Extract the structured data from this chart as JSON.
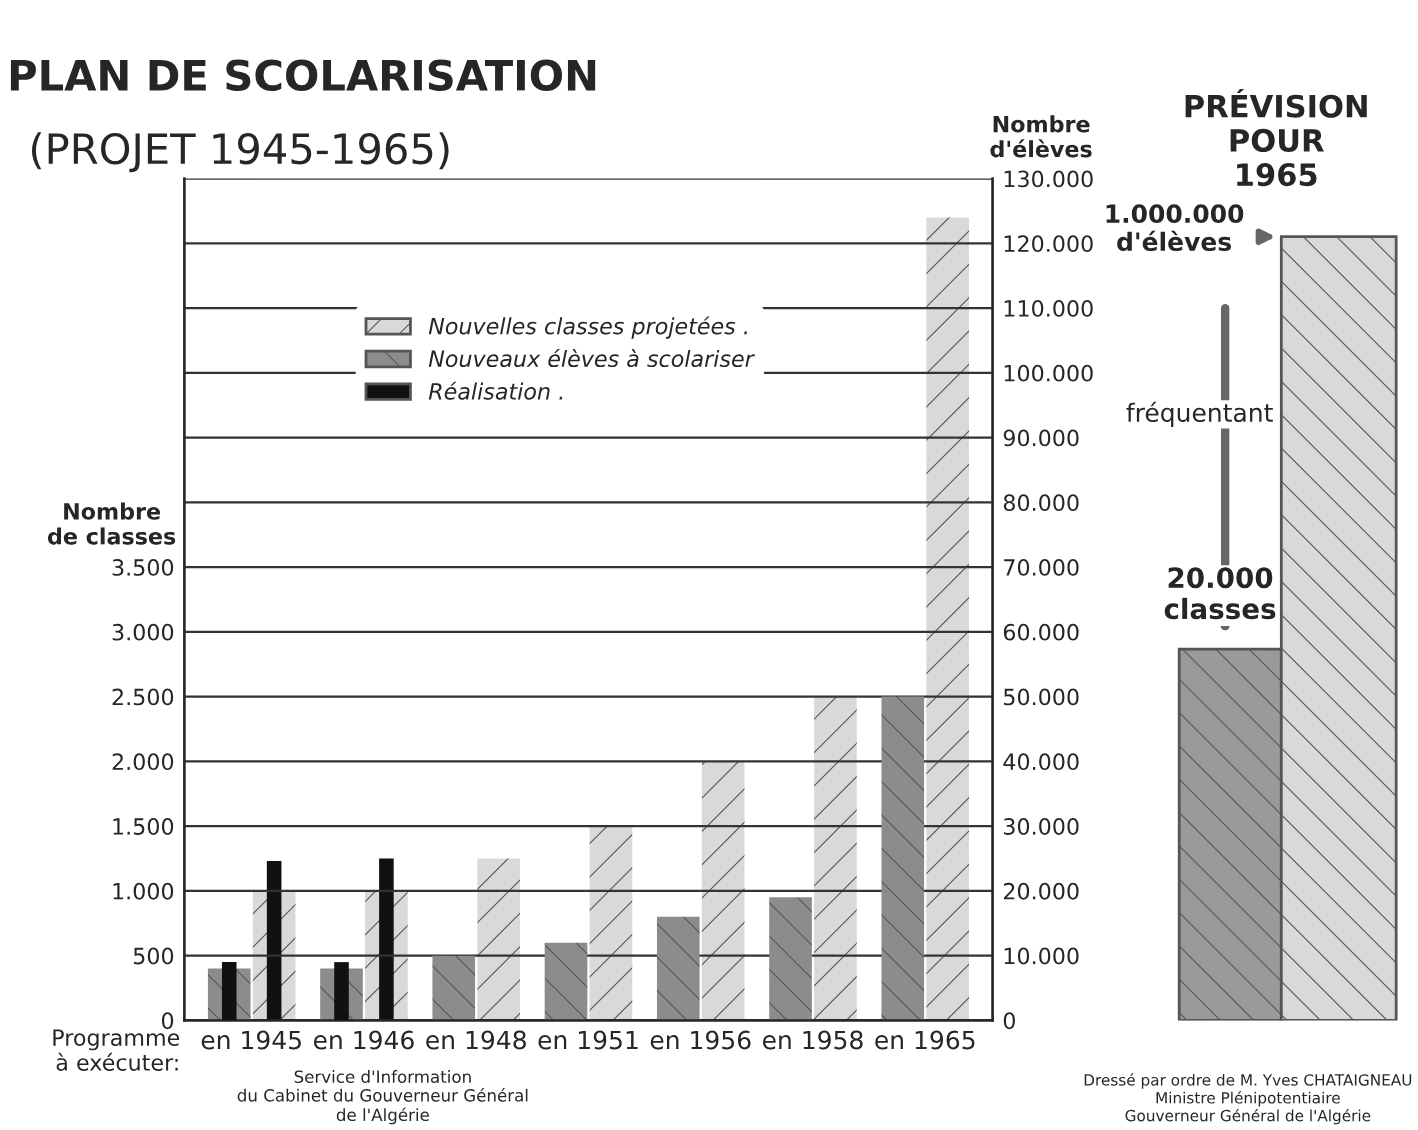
{
  "chart_data": [
    {
      "type": "bar",
      "title": "PLAN DE SCOLARISATION",
      "subtitle": "(PROJET 1945-1965)",
      "xlabel": "Programme\nà exécuter:",
      "ylabel": "Nombre\nde classes",
      "y2label": "Nombre\nd'élèves",
      "categories": [
        "en 1945",
        "en 1946",
        "en 1948",
        "en 1951",
        "en 1956",
        "en 1958",
        "en 1965"
      ],
      "series": [
        {
          "name": "Nouveaux élèves à scolariser",
          "color": "#8c8c8c",
          "axis": "y2",
          "values": [
            8000,
            8000,
            10000,
            12000,
            16000,
            19000,
            50000
          ]
        },
        {
          "color": "#111111",
          "axis": "y2",
          "values": [
            9000,
            9000,
            null,
            null,
            null,
            null,
            null
          ]
        },
        {
          "name": "Nouvelles classes projetées .",
          "color": "#d9d9d9",
          "axis": "y",
          "values": [
            1000,
            1000,
            1250,
            1500,
            2000,
            2500,
            6200
          ]
        },
        {
          "name": "Réalisation .",
          "color": "#111111",
          "axis": "y",
          "values": [
            1230,
            1250,
            null,
            null,
            null,
            null,
            null
          ]
        }
      ],
      "ylim": [
        0,
        6500
      ],
      "yticks": [
        {
          "value": 0,
          "label": "0"
        },
        {
          "value": 500,
          "label": "500"
        },
        {
          "value": 1000,
          "label": "1.000"
        },
        {
          "value": 1500,
          "label": "1.500"
        },
        {
          "value": 2000,
          "label": "2.000"
        },
        {
          "value": 2500,
          "label": "2.500"
        },
        {
          "value": 3000,
          "label": "3.000"
        },
        {
          "value": 3500,
          "label": "3.500"
        }
      ],
      "y2lim": [
        0,
        130000
      ],
      "y2ticks": [
        {
          "value": 0,
          "label": "0"
        },
        {
          "value": 10000,
          "label": "10.000"
        },
        {
          "value": 20000,
          "label": "20.000"
        },
        {
          "value": 30000,
          "label": "30.000"
        },
        {
          "value": 40000,
          "label": "40.000"
        },
        {
          "value": 50000,
          "label": "50.000"
        },
        {
          "value": 60000,
          "label": "60.000"
        },
        {
          "value": 70000,
          "label": "70.000"
        },
        {
          "value": 80000,
          "label": "80.000"
        },
        {
          "value": 90000,
          "label": "90.000"
        },
        {
          "value": 100000,
          "label": "100.000"
        },
        {
          "value": 110000,
          "label": "110.000"
        },
        {
          "value": 120000,
          "label": "120.000"
        },
        {
          "value": 130000,
          "label": "130.000"
        }
      ],
      "grid": "y2",
      "legend": "top left",
      "annotations": [
        "Service d'Information\ndu Cabinet du Gouverneur Général\nde l'Algérie"
      ]
    },
    {
      "type": "other",
      "title": "PRÉVISION\nPOUR\n1965",
      "annotations": [
        "1.000.000\nd'élèves",
        "fréquentant",
        "20.000\nclasses",
        "Dressé par ordre de M. Yves CHATAIGNEAU\nMinistre Plénipotentiaire\nGouverneur Général de l'Algérie"
      ]
    }
  ]
}
